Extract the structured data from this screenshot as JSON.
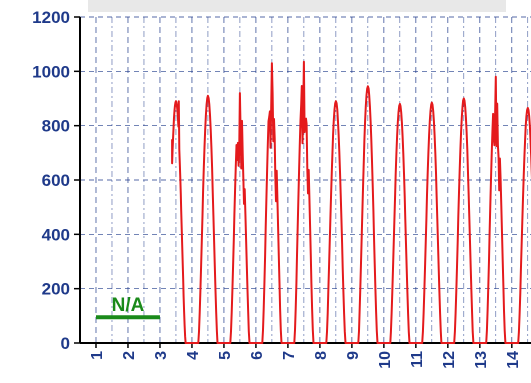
{
  "chart_data": {
    "type": "line",
    "title": "",
    "xlabel": "",
    "ylabel": "",
    "ylim": [
      0,
      1200
    ],
    "xlim": [
      0.5,
      14.6
    ],
    "grid": true,
    "y_ticks": [
      "0",
      "200",
      "400",
      "600",
      "800",
      "1000",
      "1200"
    ],
    "x_ticks": [
      "1",
      "2",
      "3",
      "4",
      "5",
      "6",
      "7",
      "8",
      "9",
      "10",
      "11",
      "12",
      "13",
      "14"
    ],
    "colors": {
      "series": "#e41a1c",
      "annotation": "#1a8a1a",
      "text": "#1f3a8a",
      "grid": "#1f3a8a"
    },
    "annotation": {
      "text": "N/A",
      "x_start": 1.0,
      "x_end": 3.0,
      "y": 95
    },
    "series": [
      {
        "peaks": [
          {
            "day": 3,
            "peak": 890,
            "start_value": 750,
            "partial": true
          },
          {
            "day": 4,
            "peak": 910
          },
          {
            "day": 5,
            "peak": 920
          },
          {
            "day": 6,
            "peak": 1030
          },
          {
            "day": 7,
            "peak": 1035
          },
          {
            "day": 8,
            "peak": 890
          },
          {
            "day": 9,
            "peak": 945
          },
          {
            "day": 10,
            "peak": 880
          },
          {
            "day": 11,
            "peak": 885
          },
          {
            "day": 12,
            "peak": 900
          },
          {
            "day": 13,
            "peak": 980
          },
          {
            "day": 14,
            "peak": 865
          }
        ]
      }
    ]
  }
}
